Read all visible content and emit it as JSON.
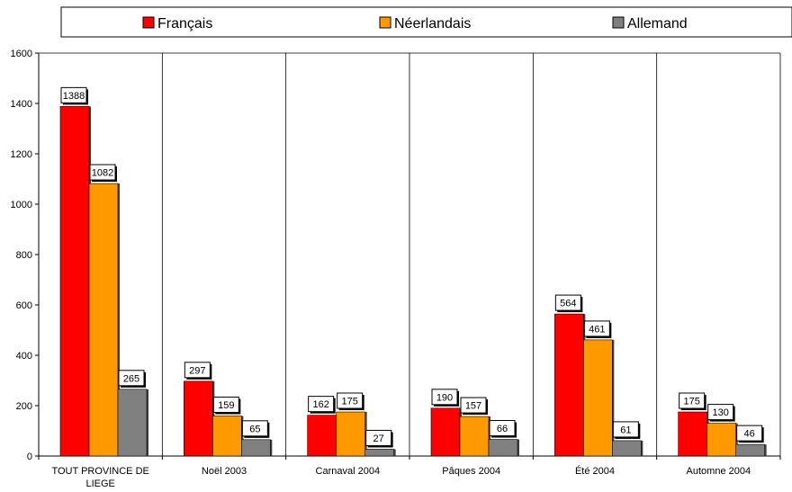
{
  "chart_data": {
    "type": "bar",
    "title": "",
    "xlabel": "",
    "ylabel": "",
    "ylim": [
      0,
      1600
    ],
    "yticks": [
      0,
      200,
      400,
      600,
      800,
      1000,
      1200,
      1400,
      1600
    ],
    "grid": "vertical separators between categories",
    "legend_position": "top",
    "categories": [
      [
        "TOUT PROVINCE DE",
        "LIEGE"
      ],
      [
        "Noël 2003"
      ],
      [
        "Carnaval 2004"
      ],
      [
        "Pâques 2004"
      ],
      [
        "Été 2004"
      ],
      [
        "Automne 2004"
      ]
    ],
    "series": [
      {
        "name": "Français",
        "color": "#ff0000",
        "values": [
          1388,
          297,
          162,
          190,
          564,
          175
        ]
      },
      {
        "name": "Néerlandais",
        "color": "#ff9900",
        "values": [
          1082,
          159,
          175,
          157,
          461,
          130
        ]
      },
      {
        "name": "Allemand",
        "color": "#808080",
        "values": [
          265,
          65,
          27,
          66,
          61,
          46
        ]
      }
    ]
  }
}
